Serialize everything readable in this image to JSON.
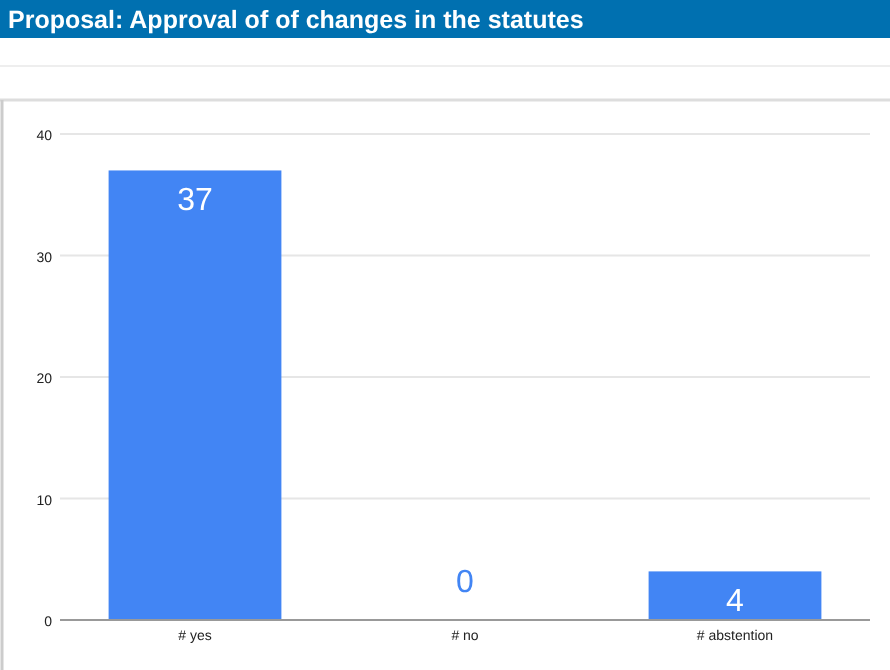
{
  "chart_data": {
    "type": "bar",
    "title": "Proposal: Approval of of changes in the statutes",
    "categories": [
      "# yes",
      "# no",
      "# abstention"
    ],
    "values": [
      37,
      0,
      4
    ],
    "color": "#4285f4",
    "ylim": [
      0,
      40
    ],
    "yticks": [
      0,
      10,
      20,
      30,
      40
    ],
    "grid": "y",
    "data_labels": true
  }
}
